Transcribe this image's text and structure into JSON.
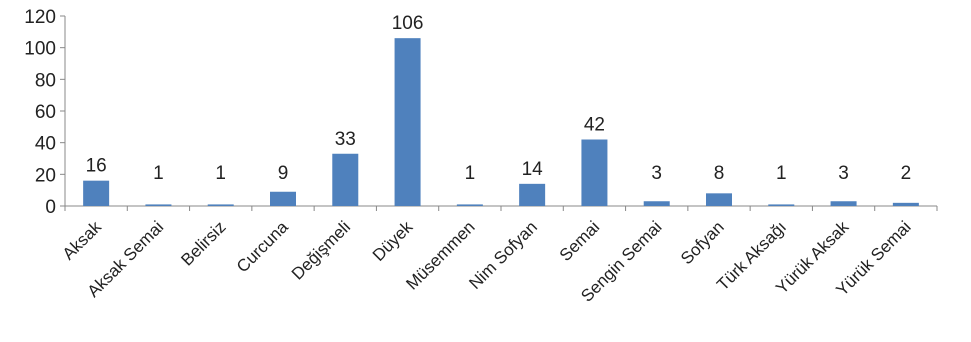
{
  "chart_data": {
    "type": "bar",
    "title": "",
    "xlabel": "",
    "ylabel": "",
    "categories": [
      "Aksak",
      "Aksak Semai",
      "Belirsiz",
      "Curcuna",
      "Değişmeli",
      "Düyek",
      "Müsemmen",
      "Nim Sofyan",
      "Semai",
      "Sengin Semai",
      "Sofyan",
      "Türk Aksağı",
      "Yürük Aksak",
      "Yürük Semai"
    ],
    "values": [
      16,
      1,
      1,
      9,
      33,
      106,
      1,
      14,
      42,
      3,
      8,
      1,
      3,
      2
    ],
    "data_labels": [
      "16",
      "1",
      "1",
      "9",
      "33",
      "106",
      "1",
      "14",
      "42",
      "3",
      "8",
      "1",
      "3",
      "2"
    ],
    "ylim": [
      0,
      120
    ],
    "yticks": [
      0,
      20,
      40,
      60,
      80,
      100,
      120
    ],
    "ytick_labels": [
      "0",
      "20",
      "40",
      "60",
      "80",
      "100",
      "120"
    ],
    "grid": false,
    "legend": "none",
    "bar_color": "#4f81bd"
  }
}
